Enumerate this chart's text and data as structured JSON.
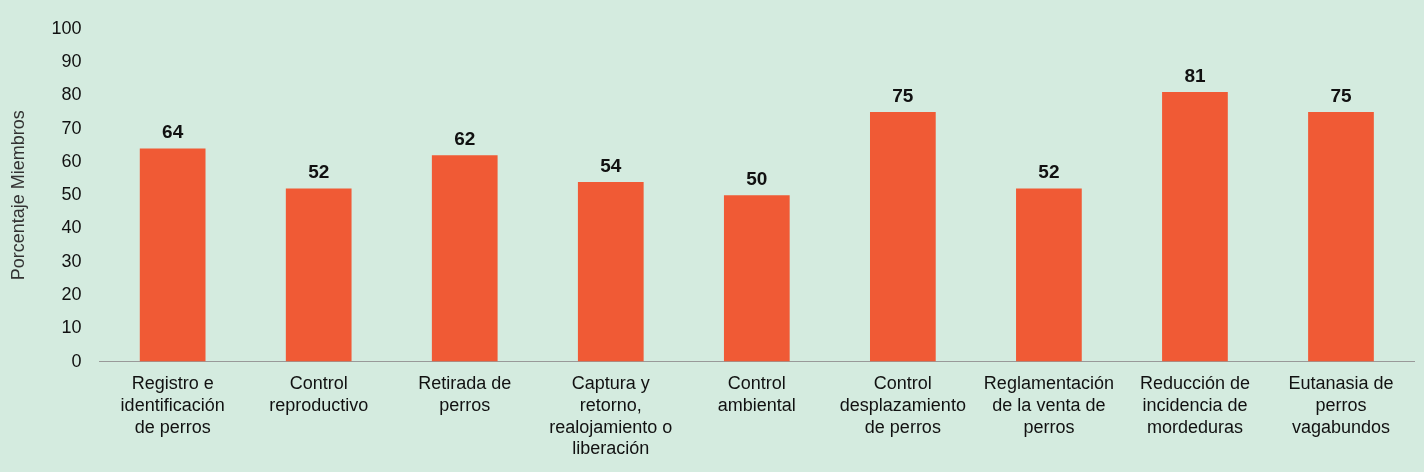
{
  "chart_data": {
    "type": "bar",
    "ylabel": "Porcentaje Miembros",
    "categories": [
      "Registro e identificación de perros",
      "Control reproductivo",
      "Retirada de perros",
      "Captura y retorno, realojamiento o liberación",
      "Control ambiental",
      "Control desplazamiento de perros",
      "Reglamentación de la venta de perros",
      "Reducción de incidencia de mordeduras",
      "Eutanasia de perros vagabundos"
    ],
    "values": [
      64,
      52,
      62,
      54,
      50,
      75,
      52,
      81,
      75
    ],
    "color": "#f05a35",
    "ylim": [
      0,
      100
    ],
    "yticks": [
      0,
      10,
      20,
      30,
      40,
      50,
      60,
      70,
      80,
      90,
      100
    ],
    "grid": false,
    "legend": false,
    "data_labels": true
  }
}
